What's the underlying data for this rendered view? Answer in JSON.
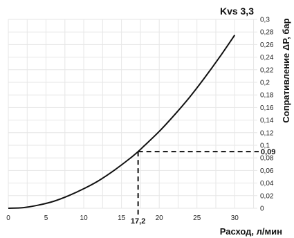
{
  "chart_data": {
    "type": "line",
    "title": "Kvs 3,3",
    "xlabel": "Расход, л/мин",
    "ylabel": "Сопративление ΔР, бар",
    "xlim": [
      0,
      33
    ],
    "ylim": [
      0,
      0.3
    ],
    "x_ticks": [
      "0",
      "5",
      "10",
      "15",
      "20",
      "25",
      "30"
    ],
    "x_tick_values": [
      0,
      5,
      10,
      15,
      20,
      25,
      30
    ],
    "y_ticks": [
      "0",
      "0,02",
      "0,04",
      "0,06",
      "0,08",
      "0,1",
      "0,12",
      "0,14",
      "0,16",
      "0,18",
      "0,2",
      "0,22",
      "0,24",
      "0,26",
      "0,28",
      "0,3"
    ],
    "y_tick_values": [
      0,
      0.02,
      0.04,
      0.06,
      0.08,
      0.1,
      0.12,
      0.14,
      0.16,
      0.18,
      0.2,
      0.22,
      0.24,
      0.26,
      0.28,
      0.3
    ],
    "grid": true,
    "y_axis_side": "right",
    "series": [
      {
        "x": [
          0,
          2,
          4,
          6,
          8,
          10,
          12,
          14,
          16,
          17.2,
          18,
          20,
          22,
          24,
          26,
          28,
          30
        ],
        "y": [
          0,
          0.001,
          0.005,
          0.011,
          0.02,
          0.031,
          0.044,
          0.06,
          0.078,
          0.09,
          0.099,
          0.122,
          0.148,
          0.176,
          0.207,
          0.24,
          0.275
        ]
      }
    ],
    "annotation": {
      "x": 17.2,
      "y": 0.09,
      "x_label": "17,2",
      "y_label": "0,09",
      "line_style": "dashed"
    }
  }
}
